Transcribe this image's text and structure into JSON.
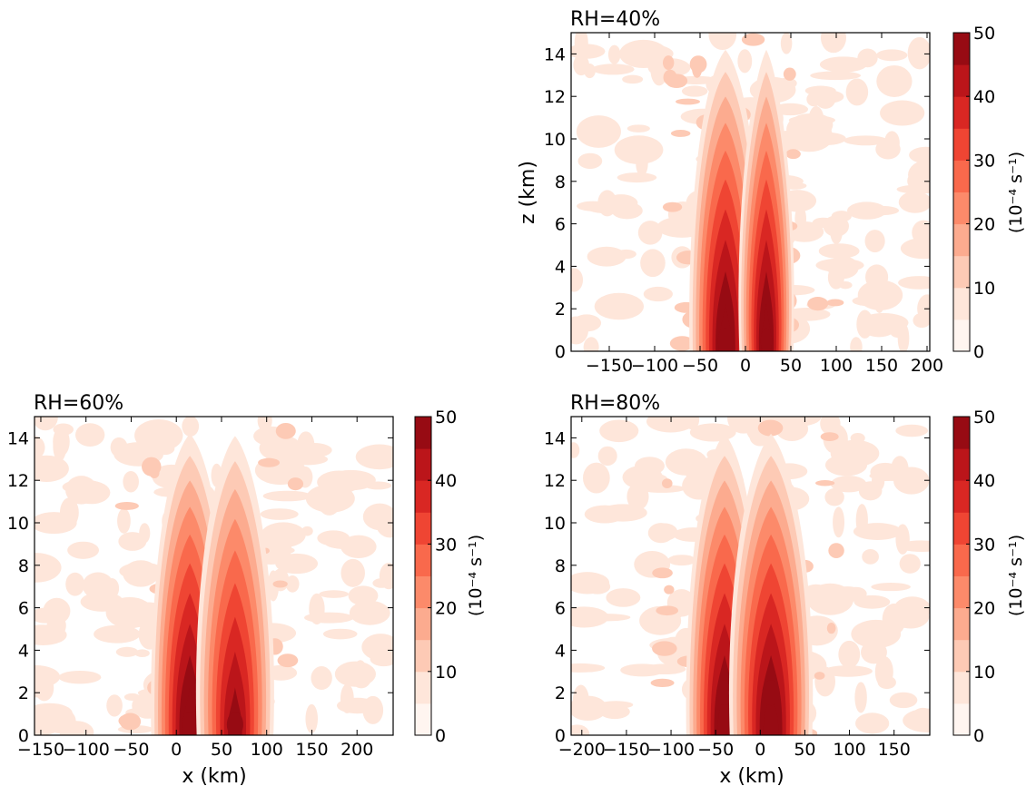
{
  "chart_data": [
    {
      "type": "heatmap",
      "panel": "top-right",
      "title": "RH=40%",
      "xlabel": "",
      "ylabel": "z (km)",
      "xlim": [
        -192,
        203
      ],
      "ylim": [
        0,
        15
      ],
      "xticks": [
        "−150",
        "−100",
        "−50",
        "0",
        "50",
        "100",
        "150",
        "200"
      ],
      "xtick_values": [
        -150,
        -100,
        -50,
        0,
        50,
        100,
        150,
        200
      ],
      "yticks": [
        "0",
        "2",
        "4",
        "6",
        "8",
        "10",
        "12",
        "14"
      ],
      "ytick_values": [
        0,
        2,
        4,
        6,
        8,
        10,
        12,
        14
      ],
      "colorbar": {
        "label": "(10⁻⁴ s⁻¹)",
        "range": [
          0,
          50
        ],
        "ticks": [
          "0",
          "10",
          "20",
          "30",
          "40",
          "50"
        ],
        "levels": 10
      },
      "features": [
        {
          "x": -22,
          "width": 24,
          "z_top": 15,
          "peak": 50,
          "peak_z": 0.5
        },
        {
          "x": 23,
          "width": 18,
          "z_top": 15,
          "peak": 50,
          "peak_z": 0.5
        }
      ]
    },
    {
      "type": "heatmap",
      "panel": "bottom-left",
      "title": "RH=60%",
      "xlabel": "x (km)",
      "ylabel": "",
      "xlim": [
        -157,
        240
      ],
      "ylim": [
        0,
        15
      ],
      "xticks": [
        "−150",
        "−100",
        "−50",
        "0",
        "50",
        "100",
        "150",
        "200"
      ],
      "xtick_values": [
        -150,
        -100,
        -50,
        0,
        50,
        100,
        150,
        200
      ],
      "yticks": [
        "0",
        "2",
        "4",
        "6",
        "8",
        "10",
        "12",
        "14"
      ],
      "ytick_values": [
        0,
        2,
        4,
        6,
        8,
        10,
        12,
        14
      ],
      "colorbar": {
        "label": "(10⁻⁴ s⁻¹)",
        "range": [
          0,
          50
        ],
        "ticks": [
          "0",
          "10",
          "20",
          "30",
          "40",
          "50"
        ],
        "levels": 10
      },
      "features": [
        {
          "x": 15,
          "width": 26,
          "z_top": 15,
          "peak": 50,
          "peak_z": 0.5
        },
        {
          "x": 65,
          "width": 26,
          "z_top": 15,
          "peak": 45,
          "peak_z": 0.5
        }
      ]
    },
    {
      "type": "heatmap",
      "panel": "bottom-right",
      "title": "RH=80%",
      "xlabel": "x (km)",
      "ylabel": "",
      "xlim": [
        -212,
        190
      ],
      "ylim": [
        0,
        15
      ],
      "xticks": [
        "−200",
        "−150",
        "−100",
        "−50",
        "0",
        "50",
        "100",
        "150"
      ],
      "xtick_values": [
        -200,
        -150,
        -100,
        -50,
        0,
        50,
        100,
        150
      ],
      "yticks": [
        "0",
        "2",
        "4",
        "6",
        "8",
        "10",
        "12",
        "14"
      ],
      "ytick_values": [
        0,
        2,
        4,
        6,
        8,
        10,
        12,
        14
      ],
      "colorbar": {
        "label": "(10⁻⁴ s⁻¹)",
        "range": [
          0,
          50
        ],
        "ticks": [
          "0",
          "10",
          "20",
          "30",
          "40",
          "50"
        ],
        "levels": 10
      },
      "features": [
        {
          "x": -40,
          "width": 26,
          "z_top": 15,
          "peak": 50,
          "peak_z": 2
        },
        {
          "x": 12,
          "width": 28,
          "z_top": 15,
          "peak": 50,
          "peak_z": 2
        }
      ]
    }
  ],
  "colors": {
    "levels": [
      "#fff5f0",
      "#fee6da",
      "#fdcab5",
      "#fcab8f",
      "#fc8a6a",
      "#f9694c",
      "#ef4533",
      "#d92723",
      "#bb151a",
      "#970b13"
    ],
    "axis": "#000000",
    "background": "#ffffff"
  }
}
